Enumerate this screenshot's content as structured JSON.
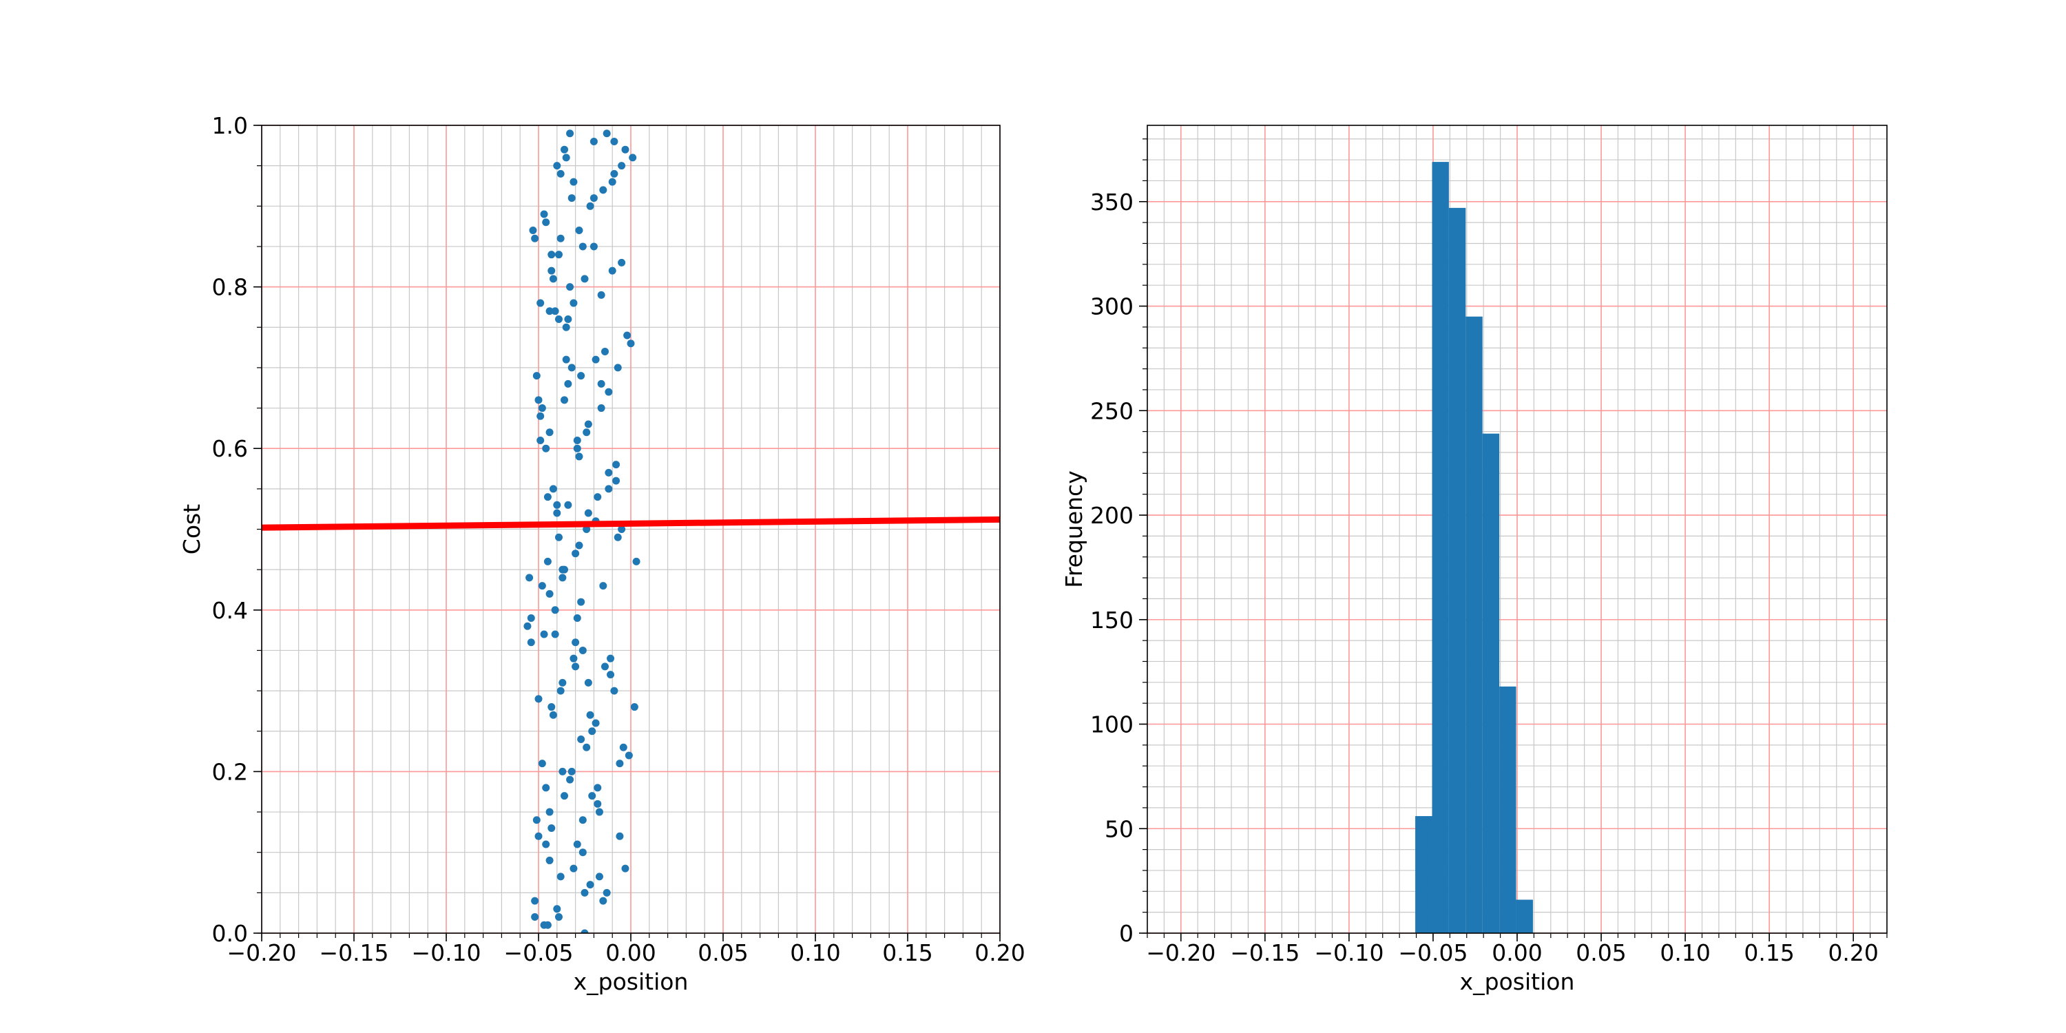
{
  "chart_data": [
    {
      "type": "scatter",
      "xlabel": "x_position",
      "ylabel": "Cost",
      "xlim": [
        -0.2,
        0.2
      ],
      "ylim": [
        0,
        1
      ],
      "xticks": [
        {
          "value": -0.2,
          "label": "−0.20"
        },
        {
          "value": -0.15,
          "label": "−0.15"
        },
        {
          "value": -0.1,
          "label": "−0.10"
        },
        {
          "value": -0.05,
          "label": "−0.05"
        },
        {
          "value": 0,
          "label": "0.00"
        },
        {
          "value": 0.05,
          "label": "0.05"
        },
        {
          "value": 0.1,
          "label": "0.10"
        },
        {
          "value": 0.15,
          "label": "0.15"
        },
        {
          "value": 0.2,
          "label": "0.20"
        }
      ],
      "yticks": [
        {
          "value": 0,
          "label": "0.0"
        },
        {
          "value": 0.2,
          "label": "0.2"
        },
        {
          "value": 0.4,
          "label": "0.4"
        },
        {
          "value": 0.6,
          "label": "0.6"
        },
        {
          "value": 0.8,
          "label": "0.8"
        },
        {
          "value": 1,
          "label": "1.0"
        }
      ],
      "x_minor_step": 0.01,
      "y_minor_step": 0.05,
      "grid": true,
      "major_grid_color": "#ff9999",
      "minor_grid_color": "#c8c8c8",
      "series": [
        {
          "type": "scatter",
          "color": "#1f77b4",
          "x": [
            -0.052,
            -0.044,
            -0.037,
            -0.03,
            -0.023,
            -0.016,
            -0.009,
            -0.003,
            -0.048,
            -0.041,
            -0.034,
            -0.027,
            -0.02,
            -0.013,
            -0.006,
            0.002,
            -0.055,
            -0.046,
            -0.039,
            -0.032,
            -0.025,
            -0.018,
            -0.011,
            -0.005,
            -0.05,
            -0.043,
            -0.036,
            -0.029,
            -0.022,
            -0.015,
            -0.008,
            -0.002,
            -0.047,
            -0.04,
            -0.033,
            -0.026,
            -0.019,
            -0.012,
            -0.005,
            0.001,
            -0.051,
            -0.038,
            -0.045,
            -0.024,
            -0.031,
            -0.01,
            -0.017,
            -0.004,
            -0.054,
            -0.042,
            -0.035,
            -0.028,
            -0.047,
            -0.021,
            -0.014,
            -0.007,
            -0.049,
            -0.033,
            -0.04,
            -0.026,
            -0.019,
            -0.044,
            -0.012,
            0.0,
            -0.046,
            -0.052,
            -0.037,
            -0.03,
            -0.023,
            -0.016,
            -0.039,
            -0.009,
            -0.043,
            -0.05,
            -0.036,
            -0.029,
            -0.041,
            -0.015,
            -0.022,
            -0.001,
            -0.056,
            -0.045,
            -0.032,
            -0.038,
            -0.025,
            -0.018,
            -0.011,
            -0.028,
            -0.048,
            -0.042,
            -0.035,
            -0.044,
            -0.021,
            -0.027,
            -0.008,
            -0.014,
            -0.053,
            -0.039,
            -0.046,
            -0.031,
            -0.024,
            -0.036,
            -0.01,
            -0.003,
            -0.05,
            -0.043,
            -0.037,
            -0.029,
            -0.034,
            -0.02,
            -0.013,
            -0.006,
            -0.047,
            -0.04,
            -0.051,
            -0.026,
            -0.033,
            -0.017,
            -0.023,
            0.003,
            -0.044,
            -0.049,
            -0.038,
            -0.031,
            -0.027,
            -0.041,
            -0.012,
            -0.019,
            -0.052,
            -0.045,
            -0.036,
            -0.03,
            -0.039,
            -0.016,
            -0.025,
            -0.005,
            -0.046,
            -0.042,
            -0.048,
            -0.028,
            -0.035,
            -0.022,
            -0.015,
            -0.032,
            -0.054,
            -0.04,
            -0.034,
            -0.043,
            -0.02,
            -0.026,
            -0.009,
            -0.037,
            -0.049,
            -0.044,
            -0.031,
            -0.038,
            -0.024,
            -0.029,
            -0.018,
            -0.007
          ],
          "values": [
            0.02,
            0.15,
            0.31,
            0.47,
            0.63,
            0.79,
            0.94,
            0.08,
            0.21,
            0.37,
            0.53,
            0.69,
            0.85,
            0.99,
            0.12,
            0.28,
            0.44,
            0.6,
            0.76,
            0.91,
            0.05,
            0.18,
            0.34,
            0.5,
            0.66,
            0.82,
            0.97,
            0.11,
            0.27,
            0.43,
            0.58,
            0.74,
            0.89,
            0.03,
            0.19,
            0.35,
            0.51,
            0.67,
            0.83,
            0.96,
            0.14,
            0.3,
            0.46,
            0.62,
            0.78,
            0.93,
            0.07,
            0.23,
            0.39,
            0.55,
            0.71,
            0.87,
            0.01,
            0.17,
            0.33,
            0.49,
            0.64,
            0.8,
            0.95,
            0.1,
            0.26,
            0.42,
            0.57,
            0.73,
            0.88,
            0.04,
            0.2,
            0.36,
            0.52,
            0.68,
            0.84,
            0.98,
            0.13,
            0.29,
            0.45,
            0.61,
            0.77,
            0.92,
            0.06,
            0.22,
            0.38,
            0.54,
            0.7,
            0.86,
            0.0,
            0.16,
            0.32,
            0.48,
            0.65,
            0.81,
            0.96,
            0.09,
            0.25,
            0.41,
            0.56,
            0.72,
            0.87,
            0.02,
            0.18,
            0.34,
            0.5,
            0.66,
            0.82,
            0.97,
            0.12,
            0.28,
            0.44,
            0.6,
            0.76,
            0.91,
            0.05,
            0.21,
            0.37,
            0.53,
            0.69,
            0.85,
            0.99,
            0.15,
            0.31,
            0.46,
            0.62,
            0.78,
            0.94,
            0.08,
            0.24,
            0.4,
            0.55,
            0.71,
            0.86,
            0.01,
            0.17,
            0.33,
            0.49,
            0.65,
            0.81,
            0.95,
            0.11,
            0.27,
            0.43,
            0.59,
            0.75,
            0.9,
            0.04,
            0.2,
            0.36,
            0.52,
            0.68,
            0.84,
            0.98,
            0.14,
            0.3,
            0.45,
            0.61,
            0.77,
            0.93,
            0.07,
            0.23,
            0.39,
            0.54,
            0.7
          ]
        },
        {
          "type": "line",
          "color": "#ff0000",
          "x": [
            -0.2,
            0.2
          ],
          "values": [
            0.502,
            0.512
          ]
        }
      ]
    },
    {
      "type": "histogram",
      "xlabel": "x_position",
      "ylabel": "Frequency",
      "xlim": [
        -0.22,
        0.22
      ],
      "ylim": [
        0,
        386.5
      ],
      "xticks": [
        {
          "value": -0.2,
          "label": "−0.20"
        },
        {
          "value": -0.15,
          "label": "−0.15"
        },
        {
          "value": -0.1,
          "label": "−0.10"
        },
        {
          "value": -0.05,
          "label": "−0.05"
        },
        {
          "value": 0,
          "label": "0.00"
        },
        {
          "value": 0.05,
          "label": "0.05"
        },
        {
          "value": 0.1,
          "label": "0.10"
        },
        {
          "value": 0.15,
          "label": "0.15"
        },
        {
          "value": 0.2,
          "label": "0.20"
        }
      ],
      "yticks": [
        0,
        50,
        100,
        150,
        200,
        250,
        300,
        350
      ],
      "x_minor_step": 0.01,
      "y_minor_step": 10,
      "grid": true,
      "major_grid_color": "#ff9999",
      "minor_grid_color": "#c8c8c8",
      "color": "#1f77b4",
      "bins": [
        -0.0606,
        -0.0506,
        -0.0406,
        -0.0306,
        -0.0206,
        -0.0106,
        -0.0006,
        0.0094
      ],
      "values": [
        56,
        369,
        347,
        295,
        239,
        118,
        16
      ]
    }
  ]
}
